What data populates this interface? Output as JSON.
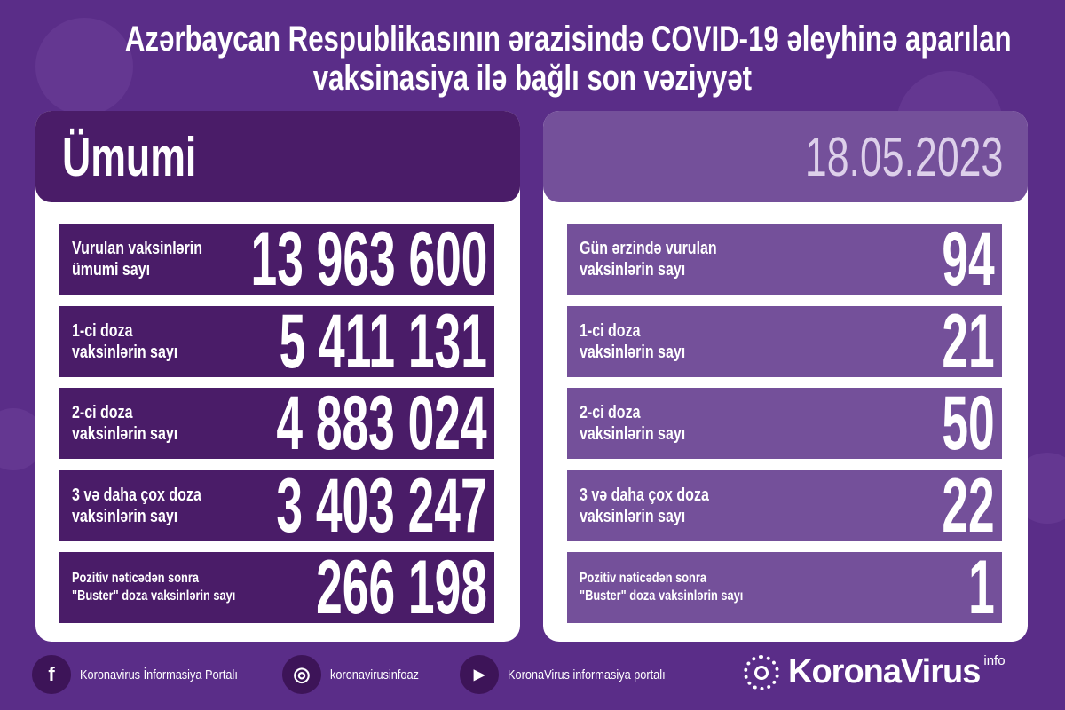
{
  "title": {
    "line1": "Azərbaycan Respublikasının ərazisində COVID-19 əleyhinə aparılan",
    "line2": "vaksinasiya ilə bağlı son vəziyyət"
  },
  "left": {
    "heading": "Ümumi",
    "rows": [
      {
        "label1": "Vurulan vaksinlərin",
        "label2": "ümumi sayı",
        "value": "13 963 600"
      },
      {
        "label1": "1-ci doza",
        "label2": "vaksinlərin sayı",
        "value": "5 411 131"
      },
      {
        "label1": "2-ci doza",
        "label2": "vaksinlərin sayı",
        "value": "4 883 024"
      },
      {
        "label1": "3 və daha çox doza",
        "label2": "vaksinlərin sayı",
        "value": "3 403 247"
      },
      {
        "label1": "Pozitiv nəticədən sonra",
        "label2": "\"Buster\" doza vaksinlərin sayı",
        "value": "266 198"
      }
    ]
  },
  "right": {
    "date": "18.05.2023",
    "rows": [
      {
        "label1": "Gün ərzində vurulan",
        "label2": "vaksinlərin sayı",
        "value": "94"
      },
      {
        "label1": "1-ci doza",
        "label2": "vaksinlərin sayı",
        "value": "21"
      },
      {
        "label1": "2-ci doza",
        "label2": "vaksinlərin sayı",
        "value": "50"
      },
      {
        "label1": "3 və daha çox doza",
        "label2": "vaksinlərin sayı",
        "value": "22"
      },
      {
        "label1": "Pozitiv nəticədən sonra",
        "label2": "\"Buster\" doza vaksinlərin sayı",
        "value": "1"
      }
    ]
  },
  "footer": {
    "facebook": {
      "icon": "facebook-icon",
      "glyph": "f",
      "text": "Koronavirus İnformasiya Portalı"
    },
    "instagram": {
      "icon": "instagram-icon",
      "glyph": "◎",
      "text": "koronavirusinfoaz"
    },
    "youtube": {
      "icon": "youtube-icon",
      "glyph": "▶",
      "text": "KoronaVirus informasiya portalı"
    },
    "logo": {
      "name": "KoronaVirus",
      "sup": "info"
    }
  },
  "colors": {
    "background": "#5a2d88",
    "dark_row": "#4a1c68",
    "light_row": "#74509a",
    "date_text": "#ddd0ea"
  }
}
